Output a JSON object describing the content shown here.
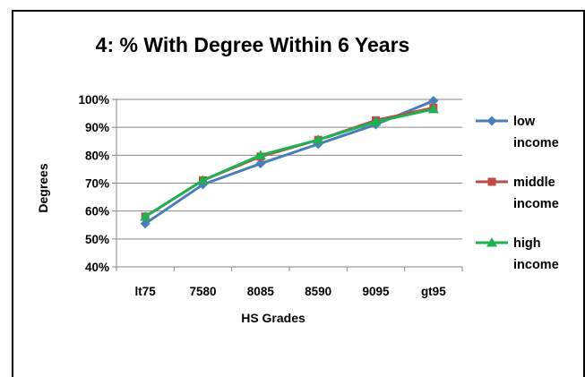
{
  "chart_data": {
    "type": "line",
    "title": "4:  % With Degree Within 6 Years",
    "xlabel": "HS Grades",
    "ylabel": "Degrees",
    "categories": [
      "lt75",
      "7580",
      "8085",
      "8590",
      "9095",
      "gt95"
    ],
    "y_ticks": [
      "40%",
      "50%",
      "60%",
      "70%",
      "80%",
      "90%",
      "100%"
    ],
    "ylim": [
      40,
      100
    ],
    "grid": true,
    "legend_position": "right",
    "series": [
      {
        "name_lines": [
          "low",
          "income"
        ],
        "values": [
          55.5,
          69.5,
          77,
          84,
          91,
          99.5
        ],
        "color": "#4a7ebb",
        "marker": "diamond"
      },
      {
        "name_lines": [
          "middle",
          "income"
        ],
        "values": [
          58,
          71,
          79.5,
          85.5,
          92.5,
          97
        ],
        "color": "#be4b48",
        "marker": "square"
      },
      {
        "name_lines": [
          "high",
          "income"
        ],
        "values": [
          58,
          71,
          80,
          85.5,
          92,
          96.5
        ],
        "color": "#1eb152",
        "marker": "triangle"
      }
    ]
  }
}
